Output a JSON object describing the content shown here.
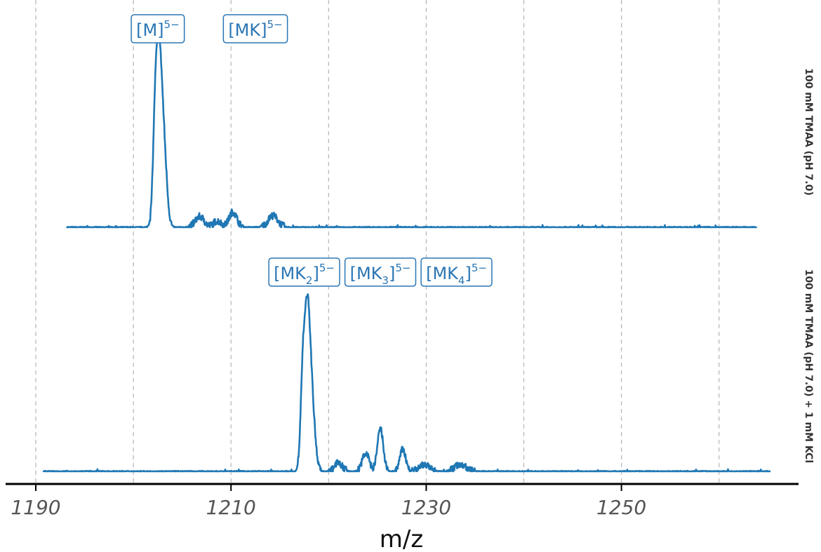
{
  "chart_data": {
    "type": "line",
    "xlabel": "m/z",
    "x_ticks": [
      1190,
      1210,
      1230,
      1250
    ],
    "xlim": [
      1189,
      1266
    ],
    "grid": {
      "x_major_and_minor": true,
      "y": false
    },
    "line_color": "#1f77b4",
    "label_color": "#2a76b5",
    "panels": [
      {
        "name": "100 mM TMAA (pH 7.0)",
        "x_range": [
          1193.2,
          1263.8
        ],
        "ylim": [
          0,
          1
        ],
        "peaks": [
          {
            "x": 1202.6,
            "y": 1.0,
            "w": 0.35
          },
          {
            "x": 1202.2,
            "y": 0.26,
            "w": 0.2
          },
          {
            "x": 1203.2,
            "y": 0.28,
            "w": 0.3
          },
          {
            "x": 1206.8,
            "y": 0.06,
            "w": 0.45
          },
          {
            "x": 1208.6,
            "y": 0.035,
            "w": 0.4
          },
          {
            "x": 1210.2,
            "y": 0.085,
            "w": 0.4
          },
          {
            "x": 1214.3,
            "y": 0.065,
            "w": 0.5
          }
        ],
        "annotations": [
          {
            "base": "[M]",
            "sub": "",
            "sup": "5−",
            "x": 1202.5
          },
          {
            "base": "[MK]",
            "sub": "",
            "sup": "5−",
            "x": 1212.5
          }
        ]
      },
      {
        "name": "100 mM TMAA (pH 7.0) + 1 mM KCl",
        "x_range": [
          1190.8,
          1265.2
        ],
        "ylim": [
          0,
          1
        ],
        "peaks": [
          {
            "x": 1217.8,
            "y": 1.0,
            "w": 0.35
          },
          {
            "x": 1217.3,
            "y": 0.3,
            "w": 0.2
          },
          {
            "x": 1218.4,
            "y": 0.22,
            "w": 0.3
          },
          {
            "x": 1221.0,
            "y": 0.05,
            "w": 0.4
          },
          {
            "x": 1223.8,
            "y": 0.11,
            "w": 0.35
          },
          {
            "x": 1225.3,
            "y": 0.25,
            "w": 0.3
          },
          {
            "x": 1227.6,
            "y": 0.13,
            "w": 0.3
          },
          {
            "x": 1229.8,
            "y": 0.04,
            "w": 0.5
          },
          {
            "x": 1233.5,
            "y": 0.04,
            "w": 0.6
          }
        ],
        "annotations": [
          {
            "base": "[MK",
            "sub": "2",
            "sup": "5−",
            "x": 1217.5
          },
          {
            "base": "[MK",
            "sub": "3",
            "sup": "5−",
            "x": 1225.3
          },
          {
            "base": "[MK",
            "sub": "4",
            "sup": "5−",
            "x": 1233.1
          }
        ]
      }
    ]
  }
}
